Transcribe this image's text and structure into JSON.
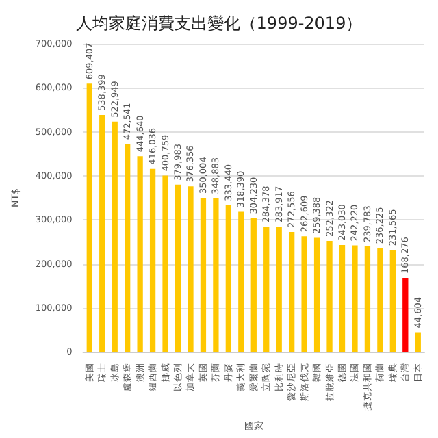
{
  "chart_data": {
    "type": "bar",
    "title": "人均家庭消費支出變化（1999-2019）",
    "xlabel": "國家",
    "ylabel": "NT$",
    "categories": [
      "美國",
      "瑞士",
      "冰島",
      "盧森堡",
      "澳洲",
      "紐西蘭",
      "挪威",
      "以色列",
      "加拿大",
      "英國",
      "芬蘭",
      "丹麥",
      "義大利",
      "愛爾蘭",
      "立陶宛",
      "比利時",
      "愛沙尼亞",
      "斯洛伐克",
      "韓國",
      "拉脫維亞",
      "德國",
      "法國",
      "捷克共和國",
      "荷蘭",
      "瑞典",
      "台灣",
      "日本"
    ],
    "values": [
      609407,
      538399,
      522949,
      472541,
      444640,
      416036,
      400759,
      379983,
      376356,
      350004,
      348883,
      333440,
      318390,
      304230,
      284378,
      283917,
      272556,
      262609,
      259388,
      252322,
      243030,
      242220,
      239783,
      236225,
      231565,
      168276,
      44604
    ],
    "colors": [
      "#ffc800",
      "#ffc800",
      "#ffc800",
      "#ffc800",
      "#ffc800",
      "#ffc800",
      "#ffc800",
      "#ffc800",
      "#ffc800",
      "#ffc800",
      "#ffc800",
      "#ffc800",
      "#ffc800",
      "#ffc800",
      "#ffc800",
      "#ffc800",
      "#ffc800",
      "#ffc800",
      "#ffc800",
      "#ffc800",
      "#ffc800",
      "#ffc800",
      "#ffc800",
      "#ffc800",
      "#ffc800",
      "#ff0000",
      "#ffc800"
    ],
    "value_labels": [
      "609,407",
      "538,399",
      "522,949",
      "472,541",
      "444,640",
      "416,036",
      "400,759",
      "379,983",
      "376,356",
      "350,004",
      "348,883",
      "333,440",
      "318,390",
      "304,230",
      "284,378",
      "283,917",
      "272,556",
      "262,609",
      "259,388",
      "252,322",
      "243,030",
      "242,220",
      "239,783",
      "236,225",
      "231,565",
      "168,276",
      "44,604"
    ],
    "ylim": [
      0,
      700000
    ],
    "yticks": [
      0,
      {
        "value": 100000,
        "label": "100,000"
      },
      {
        "value": 200000,
        "label": "200,000"
      },
      {
        "value": 300000,
        "label": "300,000"
      },
      {
        "value": 400000,
        "label": "400,000"
      },
      {
        "value": 500000,
        "label": "500,000"
      },
      {
        "value": 600000,
        "label": "600,000"
      },
      {
        "value": 700000,
        "label": "700,000"
      }
    ],
    "grid": "y"
  }
}
